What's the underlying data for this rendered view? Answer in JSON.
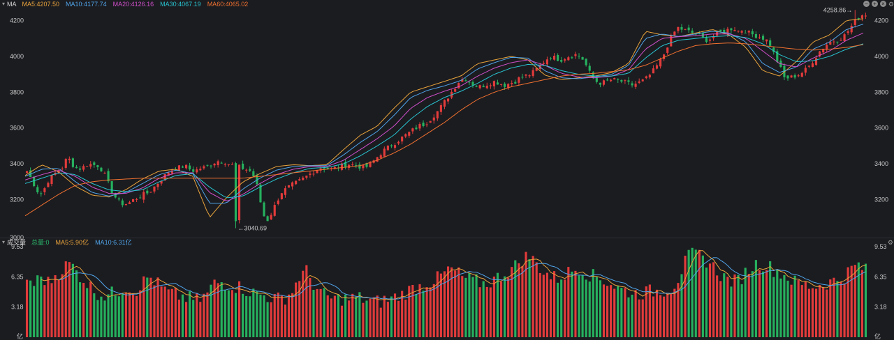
{
  "price_panel": {
    "legend_name": "MA",
    "ma_labels": [
      "MA5:4207.50",
      "MA10:4177.74",
      "MA20:4126.16",
      "MA30:4067.19",
      "MA60:4065.02"
    ],
    "ma_colors": [
      "#e8a33b",
      "#4fa3e8",
      "#d14fcb",
      "#28c3cf",
      "#f0702f"
    ],
    "high_marker": "4258.86→",
    "low_marker": "←3040.69"
  },
  "volume_panel": {
    "legend_name": "成交量",
    "labels": [
      "总量:0",
      "MA5:5.90亿",
      "MA10:6.31亿"
    ],
    "label_colors": [
      "#29b36a",
      "#e8a33b",
      "#4fa3e8"
    ],
    "unit": "亿"
  },
  "colors": {
    "up": "#e23b3b",
    "down": "#26b15e",
    "background": "#1b1c20"
  },
  "chart_data": [
    {
      "type": "candlestick",
      "series": [
        {
          "name": "MA5"
        },
        {
          "name": "MA10"
        },
        {
          "name": "MA20"
        },
        {
          "name": "MA30"
        },
        {
          "name": "MA60"
        }
      ],
      "ylim": [
        3000,
        4260
      ],
      "yticks": [
        3000,
        3200,
        3400,
        3600,
        3800,
        4000,
        4200
      ],
      "high": 4258.86,
      "low": 3040.69,
      "close_path": [
        3360,
        3310,
        3250,
        3230,
        3300,
        3330,
        3360,
        3380,
        3440,
        3395,
        3370,
        3380,
        3400,
        3395,
        3390,
        3360,
        3290,
        3230,
        3190,
        3175,
        3180,
        3200,
        3215,
        3230,
        3240,
        3270,
        3300,
        3330,
        3360,
        3375,
        3380,
        3390,
        3370,
        3360,
        3375,
        3380,
        3395,
        3410,
        3420,
        3410,
        3395,
        3390,
        3380,
        3370,
        3360,
        3310,
        3180,
        3070,
        3120,
        3180,
        3240,
        3260,
        3280,
        3295,
        3310,
        3330,
        3350,
        3370,
        3380,
        3375,
        3370,
        3380,
        3390,
        3400,
        3395,
        3390,
        3380,
        3385,
        3410,
        3440,
        3470,
        3490,
        3510,
        3530,
        3550,
        3570,
        3590,
        3610,
        3620,
        3640,
        3670,
        3700,
        3740,
        3780,
        3820,
        3860,
        3880,
        3860,
        3840,
        3830,
        3840,
        3850,
        3860,
        3850,
        3840,
        3850,
        3860,
        3880,
        3890,
        3900,
        3920,
        3950,
        3980,
        4000,
        3990,
        3980,
        3995,
        4005,
        4010,
        4000,
        3950,
        3890,
        3860,
        3850,
        3860,
        3870,
        3865,
        3860,
        3850,
        3840,
        3850,
        3860,
        3880,
        3910,
        3950,
        3990,
        4060,
        4120,
        4160,
        4150,
        4140,
        4130,
        4120,
        4100,
        4090,
        4110,
        4130,
        4140,
        4150,
        4160,
        4140,
        4150,
        4130,
        4120,
        4110,
        4100,
        4080,
        4010,
        3950,
        3880,
        3880,
        3890,
        3900,
        3920,
        3950,
        3990,
        4030,
        4060,
        4080,
        4090,
        4100,
        4120,
        4160,
        4200,
        4230,
        4235
      ],
      "ma_paths": {
        "MA5": [
          3335,
          3395,
          3355,
          3275,
          3225,
          3215,
          3255,
          3315,
          3360,
          3370,
          3330,
          3100,
          3210,
          3300,
          3345,
          3385,
          3395,
          3390,
          3395,
          3480,
          3560,
          3610,
          3710,
          3800,
          3830,
          3860,
          3890,
          3960,
          3980,
          4000,
          3980,
          3895,
          3870,
          3880,
          3890,
          3910,
          3960,
          4140,
          4120,
          4110,
          4130,
          4150,
          4120,
          4050,
          3920,
          3890,
          3970,
          4080,
          4120,
          4200,
          4210
        ],
        "MA10": [
          3330,
          3370,
          3375,
          3300,
          3240,
          3220,
          3240,
          3290,
          3340,
          3365,
          3345,
          3180,
          3180,
          3260,
          3320,
          3365,
          3385,
          3390,
          3390,
          3450,
          3520,
          3580,
          3670,
          3770,
          3810,
          3835,
          3865,
          3930,
          3965,
          3995,
          3990,
          3920,
          3880,
          3875,
          3885,
          3900,
          3950,
          4100,
          4125,
          4110,
          4125,
          4140,
          4130,
          4080,
          3960,
          3910,
          3940,
          4040,
          4080,
          4150,
          4180
        ],
        "MA20": [
          3310,
          3340,
          3365,
          3330,
          3270,
          3235,
          3235,
          3265,
          3320,
          3350,
          3350,
          3240,
          3190,
          3230,
          3290,
          3340,
          3370,
          3385,
          3385,
          3420,
          3480,
          3540,
          3610,
          3710,
          3770,
          3805,
          3835,
          3890,
          3935,
          3965,
          3980,
          3950,
          3905,
          3885,
          3880,
          3890,
          3925,
          4040,
          4100,
          4110,
          4115,
          4125,
          4125,
          4100,
          4030,
          3960,
          3940,
          3990,
          4030,
          4090,
          4130
        ],
        "MA30": [
          3290,
          3320,
          3350,
          3340,
          3290,
          3255,
          3245,
          3255,
          3300,
          3335,
          3345,
          3270,
          3210,
          3220,
          3270,
          3315,
          3350,
          3375,
          3380,
          3400,
          3445,
          3500,
          3560,
          3650,
          3720,
          3770,
          3805,
          3850,
          3900,
          3935,
          3955,
          3950,
          3920,
          3900,
          3890,
          3890,
          3905,
          3990,
          4060,
          4090,
          4100,
          4110,
          4115,
          4105,
          4070,
          4010,
          3970,
          3975,
          4000,
          4040,
          4070
        ],
        "MA60": [
          3110,
          3170,
          3230,
          3280,
          3300,
          3310,
          3315,
          3320,
          3320,
          3320,
          3320,
          3320,
          3320,
          3320,
          3330,
          3340,
          3350,
          3360,
          3370,
          3380,
          3390,
          3420,
          3460,
          3510,
          3570,
          3630,
          3700,
          3760,
          3800,
          3830,
          3850,
          3870,
          3890,
          3900,
          3905,
          3915,
          3925,
          3950,
          3990,
          4030,
          4060,
          4070,
          4075,
          4070,
          4060,
          4050,
          4040,
          4035,
          4040,
          4050,
          4065
        ]
      }
    },
    {
      "type": "bar",
      "title": "成交量",
      "ylim": [
        0,
        9.53
      ],
      "yticks": [
        3.18,
        6.35,
        9.53
      ],
      "ylabel": "亿",
      "volume_path": [
        6.2,
        5.6,
        6.4,
        5.7,
        6.6,
        7.2,
        7.8,
        6.8,
        6.0,
        5.2,
        4.6,
        4.4,
        4.6,
        5.0,
        5.4,
        4.8,
        5.6,
        6.4,
        5.8,
        5.0,
        4.6,
        4.4,
        4.2,
        4.0,
        3.9,
        4.4,
        5.6,
        5.8,
        5.6,
        5.4,
        5.2,
        4.8,
        4.6,
        4.4,
        4.2,
        4.0,
        4.2,
        4.8,
        6.4,
        6.9,
        5.6,
        4.6,
        4.2,
        4.0,
        4.1,
        4.0,
        4.2,
        4.0,
        3.8,
        3.7,
        3.9,
        4.1,
        4.4,
        4.8,
        5.2,
        5.4,
        5.8,
        6.0,
        6.6,
        7.2,
        6.8,
        6.2,
        6.0,
        5.8,
        5.6,
        6.0,
        6.4,
        6.9,
        7.4,
        8.2,
        8.6,
        7.8,
        7.0,
        6.4,
        6.2,
        6.6,
        7.0,
        7.3,
        6.8,
        6.4,
        6.2,
        5.8,
        5.4,
        5.0,
        4.8,
        4.6,
        4.7,
        4.8,
        4.9,
        5.0,
        5.2,
        6.4,
        8.2,
        9.0,
        8.4,
        8.0,
        7.2,
        6.4,
        6.0,
        5.8,
        6.6,
        7.4,
        7.8,
        7.6,
        7.2,
        6.8,
        6.4,
        5.8,
        5.6,
        5.4,
        5.4,
        5.6,
        5.8,
        6.0,
        6.4,
        7.2,
        7.6,
        7.0
      ]
    }
  ]
}
